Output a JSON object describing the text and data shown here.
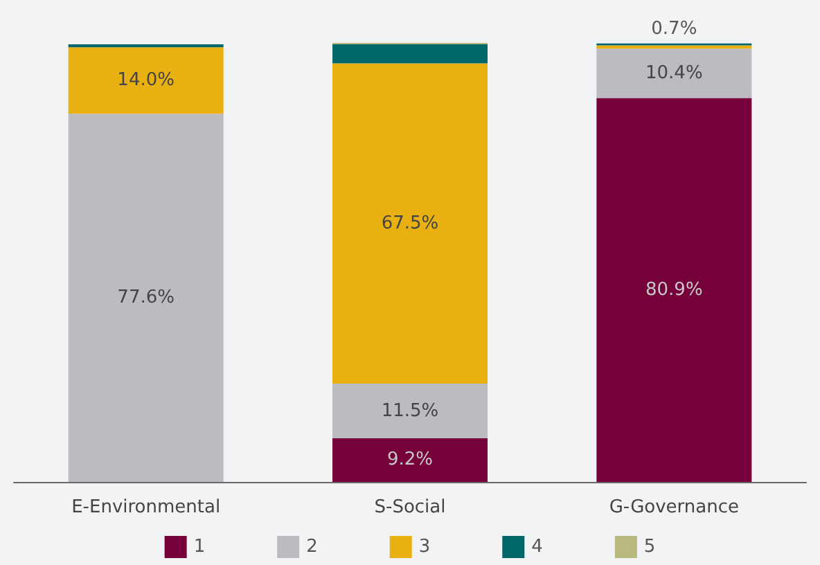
{
  "chart_data": {
    "type": "bar",
    "stacked": true,
    "categories": [
      "E-Environmental",
      "S-Social",
      "G-Governance"
    ],
    "legend": "bottom",
    "tick_labels": "x",
    "series": [
      {
        "name": "1",
        "color": "#76003a",
        "values": [
          0,
          9.2,
          80.9
        ],
        "value_labels": [
          null,
          "9.2%",
          "80.9%"
        ]
      },
      {
        "name": "2",
        "color": "#bbbcbf",
        "values": [
          77.6,
          11.5,
          10.4
        ],
        "value_labels": [
          "77.6%",
          "11.5%",
          "10.4%"
        ]
      },
      {
        "name": "3",
        "color": "#e9b012",
        "values": [
          14.0,
          67.5,
          0.7
        ],
        "value_labels": [
          "14.0%",
          "67.5%",
          "0.7%"
        ]
      },
      {
        "name": "4",
        "color": "#00666a",
        "values": [
          0.6,
          4.0,
          0.4
        ],
        "value_labels": [
          null,
          null,
          null
        ]
      },
      {
        "name": "5",
        "color": "#b7b97f",
        "values": [
          0,
          0.3,
          0
        ],
        "value_labels": [
          null,
          null,
          null
        ]
      }
    ]
  }
}
